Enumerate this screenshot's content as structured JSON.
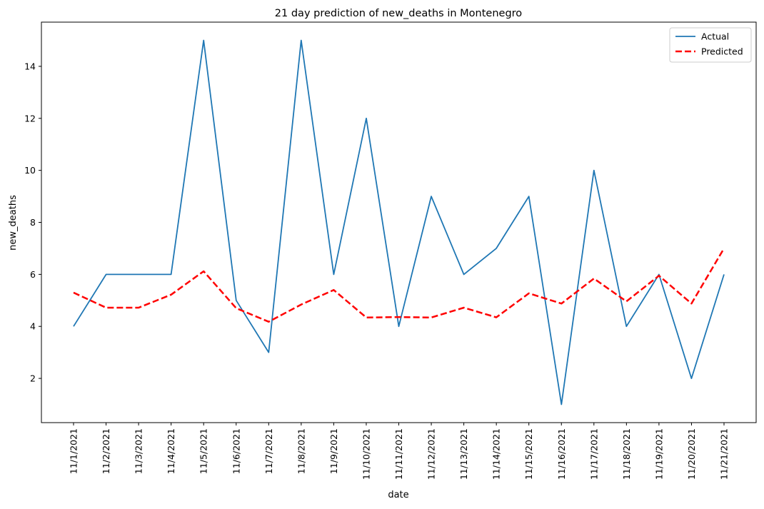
{
  "chart_data": {
    "type": "line",
    "title": "21 day prediction of new_deaths in Montenegro",
    "xlabel": "date",
    "ylabel": "new_deaths",
    "categories": [
      "11/1/2021",
      "11/2/2021",
      "11/3/2021",
      "11/4/2021",
      "11/5/2021",
      "11/6/2021",
      "11/7/2021",
      "11/8/2021",
      "11/9/2021",
      "11/10/2021",
      "11/11/2021",
      "11/12/2021",
      "11/13/2021",
      "11/14/2021",
      "11/15/2021",
      "11/16/2021",
      "11/17/2021",
      "11/18/2021",
      "11/19/2021",
      "11/20/2021",
      "11/21/2021"
    ],
    "ylim": [
      0.3,
      15.7
    ],
    "yticks": [
      2,
      4,
      6,
      8,
      10,
      12,
      14
    ],
    "grid": false,
    "legend_position": "top-right",
    "series": [
      {
        "name": "Actual",
        "color": "#1f77b4",
        "style": "solid",
        "values": [
          4,
          6,
          6,
          6,
          15,
          5,
          3,
          15,
          6,
          12,
          4,
          9,
          6,
          7,
          9,
          1,
          10,
          4,
          6,
          2,
          6
        ]
      },
      {
        "name": "Predicted",
        "color": "#ff0000",
        "style": "dashed",
        "values": [
          5.3,
          4.72,
          4.72,
          5.22,
          6.12,
          4.7,
          4.18,
          4.84,
          5.4,
          4.34,
          4.36,
          4.34,
          4.72,
          4.35,
          5.27,
          4.88,
          5.84,
          4.96,
          5.95,
          4.88,
          7.0
        ]
      }
    ]
  }
}
